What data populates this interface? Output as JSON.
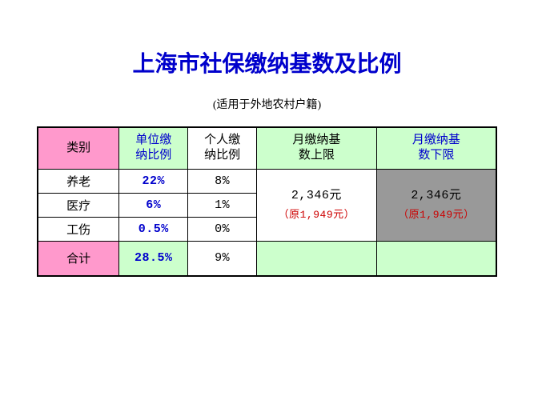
{
  "title": "上海市社保缴纳基数及比例",
  "subtitle": "(适用于外地农村户籍)",
  "headers": {
    "category": "类别",
    "company_ratio": "单位缴纳比例",
    "personal_ratio": "个人缴纳比例",
    "monthly_upper": "月缴纳基数上限",
    "monthly_lower": "月缴纳基数下限"
  },
  "rows": [
    {
      "category": "养老",
      "company_ratio": "22%",
      "personal_ratio": "8%"
    },
    {
      "category": "医疗",
      "company_ratio": "6%",
      "personal_ratio": "1%"
    },
    {
      "category": "工伤",
      "company_ratio": "0.5%",
      "personal_ratio": "0%"
    }
  ],
  "base": {
    "upper": {
      "current": "2,346元",
      "original": "（原1,949元）"
    },
    "lower": {
      "current": "2,346元",
      "original": "（原1,949元）"
    }
  },
  "total": {
    "label": "合计",
    "company_ratio": "28.5%",
    "personal_ratio": "9%"
  },
  "colors": {
    "title_blue": "#0000cc",
    "header_pink": "#ff99cc",
    "header_green": "#ccffcc",
    "gray_cell": "#999999",
    "original_red": "#cc0000",
    "border": "#000000",
    "background": "#ffffff"
  },
  "fonts": {
    "title_size_pt": 21,
    "subtitle_size_pt": 11,
    "cell_size_pt": 11
  }
}
